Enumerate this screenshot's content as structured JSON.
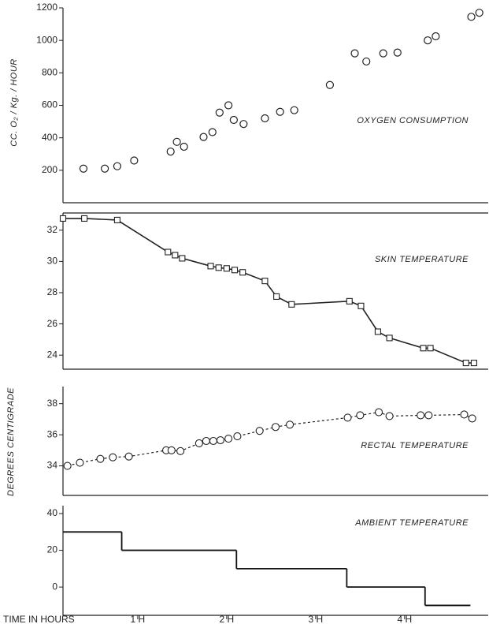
{
  "chart_data": [
    {
      "type": "scatter",
      "title": "OXYGEN CONSUMPTION",
      "ylabel": "CC. O₂ / Kg. / HOUR",
      "xlim": [
        0.16,
        4.94
      ],
      "ylim": [
        0,
        1200
      ],
      "yticks": [
        200,
        400,
        600,
        800,
        1000,
        1200
      ],
      "x": [
        0.39,
        0.63,
        0.77,
        0.96,
        1.37,
        1.44,
        1.52,
        1.74,
        1.84,
        1.92,
        2.02,
        2.08,
        2.19,
        2.43,
        2.6,
        2.76,
        3.16,
        3.44,
        3.57,
        3.76,
        3.92,
        4.26,
        4.35,
        4.75,
        4.84
      ],
      "values": [
        210,
        210,
        225,
        260,
        315,
        375,
        345,
        405,
        435,
        555,
        600,
        510,
        485,
        520,
        560,
        570,
        725,
        920,
        870,
        920,
        925,
        1000,
        1025,
        1145,
        1170
      ],
      "color": "#222"
    },
    {
      "type": "line",
      "title": "SKIN TEMPERATURE",
      "line_style": "solid",
      "marker": "square",
      "xlim": [
        0.16,
        4.94
      ],
      "ylim": [
        23.1,
        33.1
      ],
      "yticks": [
        24,
        26,
        28,
        30,
        32
      ],
      "x": [
        0.16,
        0.4,
        0.77,
        1.34,
        1.42,
        1.5,
        1.82,
        1.91,
        2.0,
        2.09,
        2.18,
        2.43,
        2.56,
        2.73,
        3.38,
        3.51,
        3.7,
        3.83,
        4.21,
        4.29,
        4.69,
        4.78
      ],
      "values": [
        32.75,
        32.75,
        32.65,
        30.6,
        30.4,
        30.2,
        29.7,
        29.6,
        29.55,
        29.45,
        29.3,
        28.75,
        27.75,
        27.25,
        27.45,
        27.15,
        25.5,
        25.1,
        24.45,
        24.45,
        23.5,
        23.5
      ],
      "color": "#222"
    },
    {
      "type": "line",
      "title": "RECTAL TEMPERATURE",
      "ylabel": "DEGREES CENTIGRADE",
      "line_style": "dashed",
      "marker": "circle",
      "xlim": [
        0.16,
        4.94
      ],
      "ylim": [
        32.1,
        39.1
      ],
      "yticks": [
        34,
        36,
        38
      ],
      "x": [
        0.21,
        0.35,
        0.58,
        0.72,
        0.9,
        1.32,
        1.38,
        1.48,
        1.69,
        1.77,
        1.85,
        1.93,
        2.02,
        2.12,
        2.37,
        2.55,
        2.71,
        3.36,
        3.5,
        3.71,
        3.83,
        4.18,
        4.27,
        4.67,
        4.76
      ],
      "values": [
        34,
        34.2,
        34.45,
        34.55,
        34.6,
        35,
        35,
        34.95,
        35.45,
        35.6,
        35.6,
        35.65,
        35.75,
        35.9,
        36.25,
        36.5,
        36.65,
        37.1,
        37.25,
        37.45,
        37.2,
        37.25,
        37.25,
        37.3,
        37.05
      ],
      "color": "#222"
    },
    {
      "type": "step",
      "title": "AMBIENT TEMPERATURE",
      "xlabel": "TIME IN HOURS",
      "xlim": [
        0.16,
        4.94
      ],
      "ylim": [
        -15.4,
        44.3
      ],
      "yticks": [
        0,
        20,
        40
      ],
      "xticks": [
        {
          "value": 1,
          "label": "1 H"
        },
        {
          "value": 2,
          "label": "2 H"
        },
        {
          "value": 3,
          "label": "3 H"
        },
        {
          "value": 4,
          "label": "4 H"
        }
      ],
      "x": [
        0.16,
        0.82,
        2.11,
        3.35,
        4.23,
        4.74
      ],
      "values": [
        30,
        20,
        10,
        0,
        -10,
        -10
      ],
      "color": "#111"
    }
  ]
}
